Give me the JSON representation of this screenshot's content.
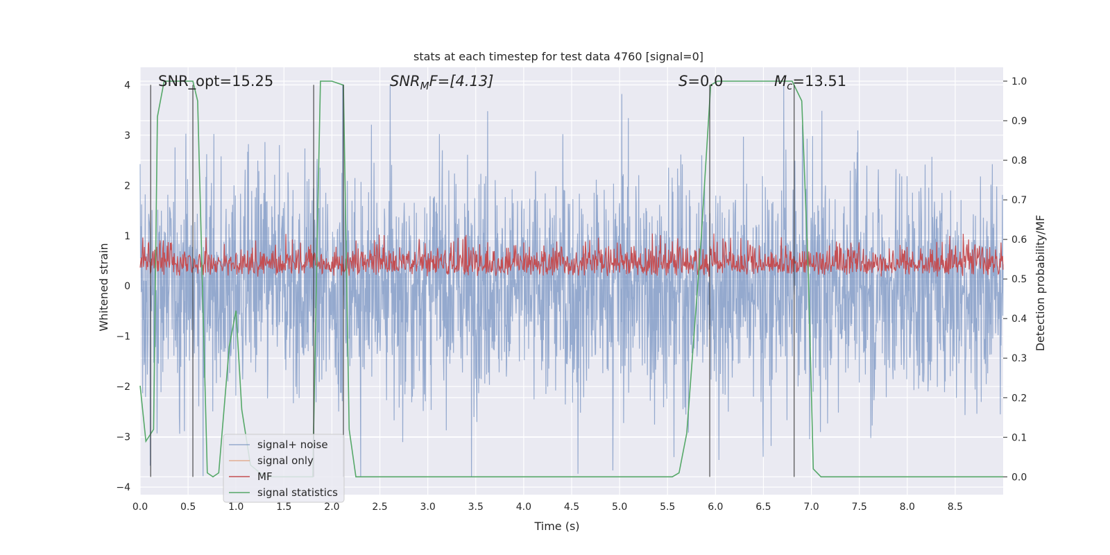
{
  "chart_data": {
    "type": "line",
    "title": "stats at each timestep for test data 4760 [signal=0]",
    "xlabel": "Time (s)",
    "ylabel_left": "Whitened strain",
    "ylabel_right": "Detection probability/MF",
    "xlim": [
      0.0,
      9.0
    ],
    "ylim_left": [
      -4.15,
      4.35
    ],
    "ylim_right": [
      -0.045,
      1.035
    ],
    "x_ticks": [
      "0.0",
      "0.5",
      "1.0",
      "1.5",
      "2.0",
      "2.5",
      "3.0",
      "3.5",
      "4.0",
      "4.5",
      "5.0",
      "5.5",
      "6.0",
      "6.5",
      "7.0",
      "7.5",
      "8.0",
      "8.5"
    ],
    "y_ticks_left": [
      "4",
      "3",
      "2",
      "1",
      "0",
      "−1",
      "−2",
      "−3",
      "−4"
    ],
    "y_ticks_right": [
      "1.0",
      "0.9",
      "0.8",
      "0.7",
      "0.6",
      "0.5",
      "0.4",
      "0.3",
      "0.2",
      "0.1",
      "0.0"
    ],
    "annotations": {
      "snr_opt": "SNR_opt=15.25",
      "snr_mf_prefix": "SNR",
      "snr_mf_sub": "M",
      "snr_mf_rest": "F=[4.13]",
      "s_prefix": "S",
      "s_rest": "=0.0",
      "mc_prefix": "M",
      "mc_sub": "c",
      "mc_rest": "=13.51"
    },
    "legend": {
      "placement": "lower-left",
      "entries": [
        "signal+ noise",
        "signal only",
        "MF",
        "signal statistics"
      ]
    },
    "series": [
      {
        "name": "signal+ noise",
        "color": "#4c72b0",
        "description_range": [
          -3.8,
          4.0
        ],
        "typical_band": [
          -2.1,
          2.1
        ]
      },
      {
        "name": "signal only",
        "color": "#dd8452",
        "values": []
      },
      {
        "name": "MF",
        "color": "#c44e52",
        "axis": "right",
        "typical_band": [
          0.49,
          0.6
        ]
      },
      {
        "name": "signal statistics",
        "color": "#55a868",
        "axis": "right",
        "x": [
          0.0,
          0.06,
          0.14,
          0.18,
          0.25,
          0.3,
          0.55,
          0.6,
          0.7,
          0.76,
          0.82,
          0.93,
          1.0,
          1.06,
          1.15,
          1.3,
          1.6,
          1.8,
          1.85,
          1.88,
          2.0,
          2.12,
          2.18,
          2.25,
          2.5,
          3.0,
          4.0,
          5.0,
          5.55,
          5.62,
          5.7,
          5.85,
          5.95,
          6.02,
          6.05,
          6.7,
          6.8,
          6.9,
          6.97,
          7.02,
          7.1,
          8.0,
          9.0
        ],
        "values": [
          0.23,
          0.09,
          0.12,
          0.91,
          1.0,
          1.0,
          1.0,
          0.95,
          0.01,
          0.0,
          0.01,
          0.33,
          0.42,
          0.17,
          0.03,
          0.0,
          0.0,
          0.0,
          0.64,
          1.0,
          1.0,
          0.99,
          0.12,
          0.0,
          0.0,
          0.0,
          0.0,
          0.0,
          0.0,
          0.01,
          0.11,
          0.6,
          0.99,
          1.0,
          1.0,
          1.0,
          1.0,
          0.95,
          0.5,
          0.02,
          0.0,
          0.0,
          0.0
        ]
      }
    ],
    "vertical_markers_x": [
      0.11,
      0.55,
      1.81,
      2.12,
      5.94,
      6.82
    ]
  }
}
